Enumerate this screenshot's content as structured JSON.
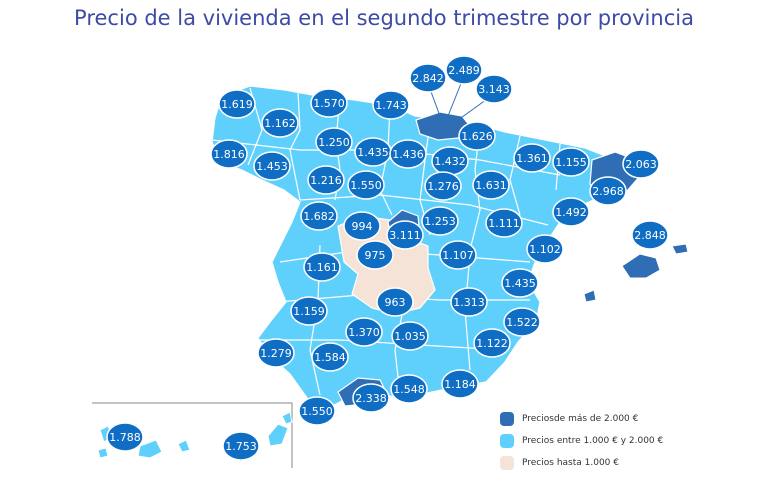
{
  "title": "Precio de la vivienda en el segundo trimestre por provincia",
  "colors": {
    "high": "#2f6db5",
    "mid": "#5fd0fb",
    "low": "#f6e3d8",
    "badge": "#0f6ec4",
    "border": "#ffffff"
  },
  "legend": [
    {
      "label": "Preciosde más de 2.000 €",
      "color": "#2f6db5"
    },
    {
      "label": "Precios entre 1.000 € y 2.000 €",
      "color": "#5fd0fb"
    },
    {
      "label": "Precios hasta 1.000 €",
      "color": "#f6e3d8"
    }
  ],
  "badges": [
    {
      "value": "1.619",
      "tier": "mid"
    },
    {
      "value": "1.162",
      "tier": "mid"
    },
    {
      "value": "1.816",
      "tier": "mid"
    },
    {
      "value": "1.453",
      "tier": "mid"
    },
    {
      "value": "1.570",
      "tier": "mid"
    },
    {
      "value": "1.743",
      "tier": "mid"
    },
    {
      "value": "2.842",
      "tier": "high"
    },
    {
      "value": "2.489",
      "tier": "high"
    },
    {
      "value": "3.143",
      "tier": "high"
    },
    {
      "value": "1.250",
      "tier": "mid"
    },
    {
      "value": "1.435",
      "tier": "mid"
    },
    {
      "value": "1.436",
      "tier": "mid"
    },
    {
      "value": "1.626",
      "tier": "mid"
    },
    {
      "value": "1.432",
      "tier": "mid"
    },
    {
      "value": "1.361",
      "tier": "mid"
    },
    {
      "value": "1.155",
      "tier": "mid"
    },
    {
      "value": "2.063",
      "tier": "high"
    },
    {
      "value": "1.216",
      "tier": "mid"
    },
    {
      "value": "1.550",
      "tier": "mid"
    },
    {
      "value": "1.276",
      "tier": "mid"
    },
    {
      "value": "1.631",
      "tier": "mid"
    },
    {
      "value": "2.968",
      "tier": "high"
    },
    {
      "value": "1.682",
      "tier": "mid"
    },
    {
      "value": "994",
      "tier": "low"
    },
    {
      "value": "3.111",
      "tier": "high"
    },
    {
      "value": "1.253",
      "tier": "mid"
    },
    {
      "value": "1.111",
      "tier": "mid"
    },
    {
      "value": "1.492",
      "tier": "mid"
    },
    {
      "value": "2.848",
      "tier": "high"
    },
    {
      "value": "1.102",
      "tier": "mid"
    },
    {
      "value": "975",
      "tier": "low"
    },
    {
      "value": "1.161",
      "tier": "mid"
    },
    {
      "value": "1.107",
      "tier": "mid"
    },
    {
      "value": "1.435",
      "tier": "mid"
    },
    {
      "value": "963",
      "tier": "low"
    },
    {
      "value": "1.313",
      "tier": "mid"
    },
    {
      "value": "1.159",
      "tier": "mid"
    },
    {
      "value": "1.522",
      "tier": "mid"
    },
    {
      "value": "1.370",
      "tier": "mid"
    },
    {
      "value": "1.035",
      "tier": "mid"
    },
    {
      "value": "1.279",
      "tier": "mid"
    },
    {
      "value": "1.584",
      "tier": "mid"
    },
    {
      "value": "1.122",
      "tier": "mid"
    },
    {
      "value": "2.338",
      "tier": "high"
    },
    {
      "value": "1.548",
      "tier": "mid"
    },
    {
      "value": "1.184",
      "tier": "mid"
    },
    {
      "value": "1.550",
      "tier": "mid"
    },
    {
      "value": "1.788",
      "tier": "mid"
    },
    {
      "value": "1.753",
      "tier": "mid"
    }
  ]
}
